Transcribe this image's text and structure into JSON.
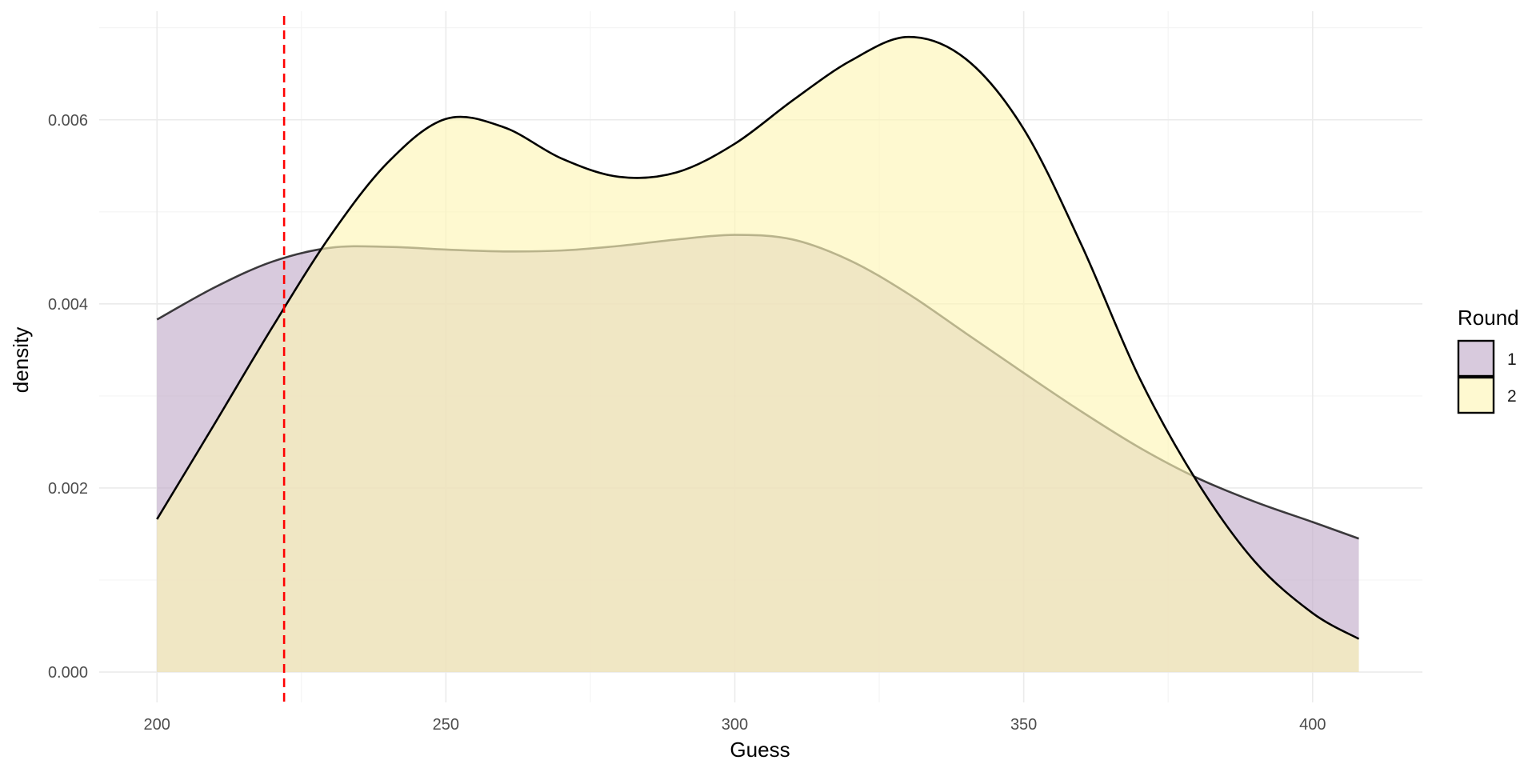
{
  "chart_data": {
    "type": "area",
    "subtype": "density",
    "xlabel": "Guess",
    "ylabel": "density",
    "xlim": [
      190,
      419
    ],
    "ylim": [
      -0.00033,
      0.00718
    ],
    "x_ticks": [
      200,
      250,
      300,
      350,
      400
    ],
    "x_tick_labels": [
      "200",
      "250",
      "300",
      "350",
      "400"
    ],
    "y_ticks": [
      0.0,
      0.002,
      0.004,
      0.006
    ],
    "y_tick_labels": [
      "0.000",
      "0.002",
      "0.004",
      "0.006"
    ],
    "grid": true,
    "reference_line": {
      "x": 222,
      "color": "#ff0000",
      "style": "dashed"
    },
    "legend": {
      "title": "Round",
      "position": "right"
    },
    "series": [
      {
        "name": "1",
        "fill": "#c3aecb",
        "x": [
          200,
          210,
          220,
          230,
          240,
          250,
          260,
          270,
          280,
          290,
          300,
          310,
          320,
          330,
          340,
          350,
          360,
          370,
          380,
          390,
          400,
          408
        ],
        "y": [
          0.00383,
          0.00418,
          0.00446,
          0.00461,
          0.00462,
          0.00459,
          0.00457,
          0.00458,
          0.00463,
          0.0047,
          0.00475,
          0.0047,
          0.00447,
          0.00411,
          0.00368,
          0.00325,
          0.00283,
          0.00244,
          0.00211,
          0.00185,
          0.00163,
          0.00145
        ]
      },
      {
        "name": "2",
        "fill": "#fdf6b7",
        "x": [
          200,
          210,
          220,
          230,
          240,
          250,
          260,
          270,
          280,
          290,
          300,
          310,
          320,
          330,
          340,
          350,
          360,
          370,
          380,
          390,
          400,
          408
        ],
        "y": [
          0.00166,
          0.0027,
          0.00375,
          0.00474,
          0.00554,
          0.00601,
          0.00592,
          0.00558,
          0.00538,
          0.00543,
          0.00574,
          0.00621,
          0.00664,
          0.0069,
          0.00666,
          0.0059,
          0.00464,
          0.0032,
          0.00207,
          0.0012,
          0.00064,
          0.00036
        ]
      }
    ]
  }
}
